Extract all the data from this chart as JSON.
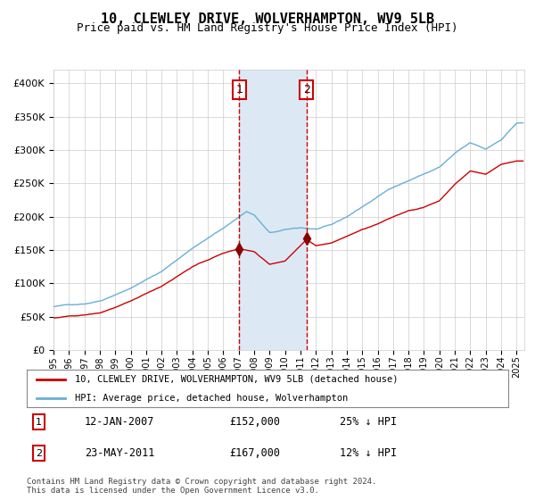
{
  "title": "10, CLEWLEY DRIVE, WOLVERHAMPTON, WV9 5LB",
  "subtitle": "Price paid vs. HM Land Registry's House Price Index (HPI)",
  "legend_line1": "10, CLEWLEY DRIVE, WOLVERHAMPTON, WV9 5LB (detached house)",
  "legend_line2": "HPI: Average price, detached house, Wolverhampton",
  "annotation1_label": "1",
  "annotation1_date": "12-JAN-2007",
  "annotation1_price": "£152,000",
  "annotation1_hpi": "25% ↓ HPI",
  "annotation2_label": "2",
  "annotation2_date": "23-MAY-2011",
  "annotation2_price": "£167,000",
  "annotation2_hpi": "12% ↓ HPI",
  "footer": "Contains HM Land Registry data © Crown copyright and database right 2024.\nThis data is licensed under the Open Government Licence v3.0.",
  "hpi_color": "#6aaed6",
  "property_color": "#cc0000",
  "marker_color": "#8b0000",
  "dashed_line_color": "#cc0000",
  "shading_color": "#dce9f5",
  "grid_color": "#cccccc",
  "background_color": "#ffffff",
  "annotation_box_color": "#cc0000",
  "ylim": [
    0,
    420000
  ],
  "yticks": [
    0,
    50000,
    100000,
    150000,
    200000,
    250000,
    300000,
    350000,
    400000
  ],
  "year_start": 1995,
  "year_end": 2025,
  "sale1_year": 2007.04,
  "sale2_year": 2011.39,
  "sale1_price": 152000,
  "sale2_price": 167000
}
